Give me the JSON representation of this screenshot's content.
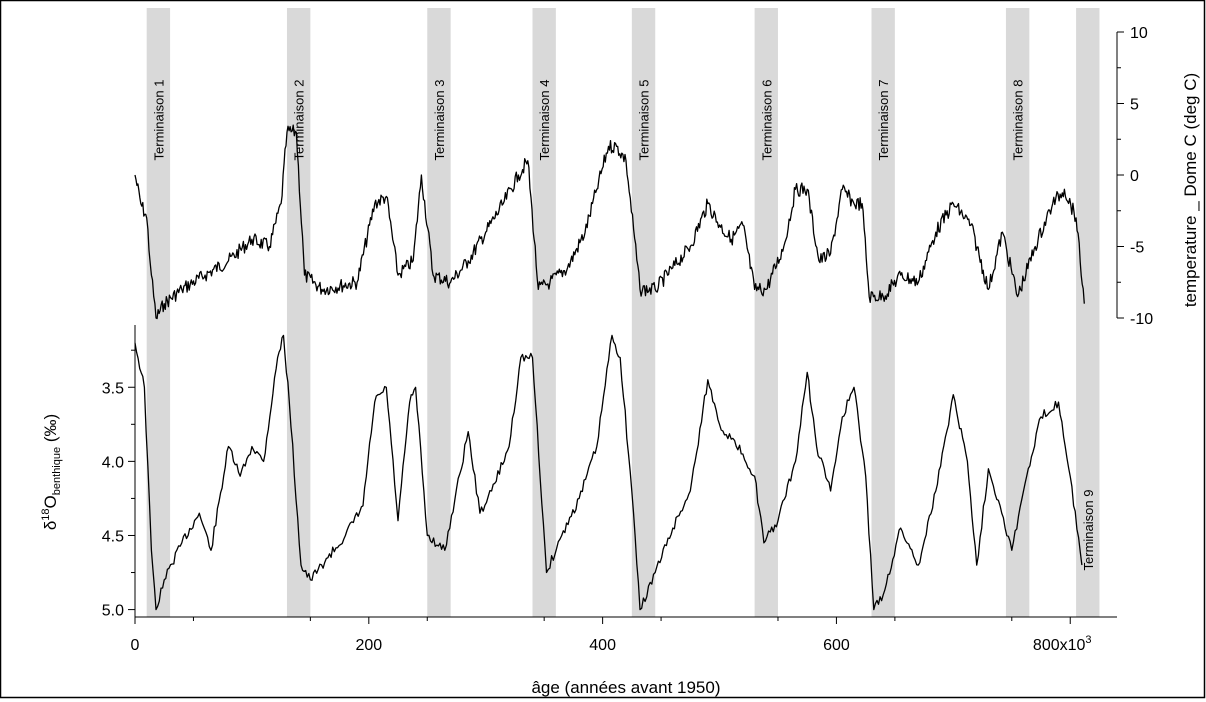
{
  "chart_data": {
    "type": "line",
    "title": "",
    "xlabel": "âge (années avant 1950)",
    "xlim": [
      0,
      840000
    ],
    "x_ticks": [
      0,
      200000,
      400000,
      600000,
      800000
    ],
    "x_tick_labels": [
      "0",
      "200",
      "400",
      "600",
      "800x10"
    ],
    "x_tick_label_exponent": "3",
    "terminations": [
      {
        "label": "Terminaison 1",
        "start": 10000,
        "end": 30000
      },
      {
        "label": "Terminaison 2",
        "start": 130000,
        "end": 150000
      },
      {
        "label": "Terminaison 3",
        "start": 250000,
        "end": 270000
      },
      {
        "label": "Terminaison 4",
        "start": 340000,
        "end": 360000
      },
      {
        "label": "Terminaison 5",
        "start": 425000,
        "end": 445000
      },
      {
        "label": "Terminaison 6",
        "start": 530000,
        "end": 550000
      },
      {
        "label": "Terminaison 7",
        "start": 630000,
        "end": 650000
      },
      {
        "label": "Terminaison 8",
        "start": 745000,
        "end": 765000
      },
      {
        "label": "Terminaison 9",
        "start": 805000,
        "end": 825000
      }
    ],
    "series": [
      {
        "name": "temperature _ Dome C (deg C)",
        "axis": "right",
        "ylabel": "temperature _ Dome C (deg C)",
        "ylim": [
          -10,
          10
        ],
        "y_ticks": [
          -10,
          -5,
          0,
          5,
          10
        ],
        "x": [
          0,
          5000,
          10000,
          14000,
          18000,
          25000,
          40000,
          60000,
          80000,
          100000,
          115000,
          125000,
          130000,
          138000,
          145000,
          160000,
          190000,
          205000,
          215000,
          225000,
          238000,
          245000,
          255000,
          270000,
          285000,
          300000,
          315000,
          328000,
          336000,
          345000,
          355000,
          370000,
          385000,
          395000,
          405000,
          412000,
          420000,
          432000,
          445000,
          460000,
          475000,
          490000,
          500000,
          510000,
          520000,
          530000,
          540000,
          555000,
          565000,
          575000,
          585000,
          595000,
          605000,
          615000,
          622000,
          628000,
          640000,
          655000,
          670000,
          685000,
          700000,
          715000,
          730000,
          742000,
          755000,
          770000,
          785000,
          795000,
          805000,
          812000
        ],
        "y": [
          0,
          -2,
          -3,
          -7,
          -10,
          -9,
          -8,
          -7,
          -6,
          -4.5,
          -5,
          -2,
          3,
          3,
          -7,
          -8,
          -7.5,
          -2,
          -1.5,
          -7,
          -6,
          0,
          -7,
          -7.5,
          -6,
          -4,
          -2,
          0,
          1,
          -8,
          -7.5,
          -6.5,
          -4,
          -1,
          2,
          2,
          1,
          -8,
          -8,
          -6.5,
          -5,
          -2,
          -3.5,
          -4.5,
          -3.5,
          -8,
          -8,
          -5,
          -1,
          -1,
          -6,
          -5.5,
          -1,
          -2,
          -2,
          -8.5,
          -8.5,
          -7,
          -7.5,
          -4,
          -2,
          -3.5,
          -8,
          -4,
          -8.5,
          -5,
          -2,
          -1,
          -3,
          -9
        ],
        "color": "#000000"
      },
      {
        "name": "δ18O benthique (‰)",
        "axis": "left",
        "ylabel": "δ18O benthique (‰)",
        "ylabel_base": "δ",
        "ylabel_sup": "18",
        "ylabel_main": "O",
        "ylabel_sub": "benthique",
        "ylabel_unit": " (‰)",
        "ylim": [
          5.05,
          3.08
        ],
        "y_ticks": [
          3.5,
          4.0,
          4.5,
          5.0
        ],
        "y_tick_labels": [
          "3.5",
          "4.0",
          "4.5",
          "5.0"
        ],
        "x": [
          0,
          8000,
          14000,
          18000,
          25000,
          40000,
          55000,
          65000,
          80000,
          90000,
          100000,
          110000,
          122000,
          127000,
          132000,
          142000,
          150000,
          165000,
          180000,
          195000,
          205000,
          215000,
          225000,
          235000,
          240000,
          250000,
          265000,
          285000,
          295000,
          305000,
          320000,
          330000,
          340000,
          352000,
          365000,
          380000,
          395000,
          408000,
          415000,
          425000,
          432000,
          445000,
          460000,
          475000,
          490000,
          500000,
          510000,
          520000,
          530000,
          538000,
          550000,
          565000,
          575000,
          583000,
          595000,
          605000,
          615000,
          625000,
          632000,
          640000,
          655000,
          670000,
          685000,
          700000,
          712000,
          720000,
          730000,
          740000,
          750000,
          760000,
          775000,
          790000,
          800000,
          810000
        ],
        "y": [
          3.2,
          3.5,
          4.6,
          5.0,
          4.8,
          4.55,
          4.35,
          4.6,
          3.9,
          4.1,
          3.9,
          4.0,
          3.3,
          3.15,
          3.6,
          4.7,
          4.8,
          4.65,
          4.5,
          4.3,
          3.6,
          3.5,
          4.4,
          3.6,
          3.5,
          4.5,
          4.6,
          3.8,
          4.35,
          4.2,
          3.9,
          3.3,
          3.3,
          4.75,
          4.5,
          4.25,
          3.9,
          3.15,
          3.3,
          4.2,
          5.0,
          4.75,
          4.45,
          4.2,
          3.45,
          3.75,
          3.85,
          3.95,
          4.1,
          4.55,
          4.4,
          4.0,
          3.4,
          3.9,
          4.2,
          3.7,
          3.5,
          4.1,
          5.0,
          4.9,
          4.45,
          4.7,
          4.2,
          3.55,
          4.0,
          4.7,
          4.05,
          4.3,
          4.6,
          4.2,
          3.7,
          3.6,
          4.1,
          4.7
        ],
        "color": "#000000"
      }
    ]
  }
}
